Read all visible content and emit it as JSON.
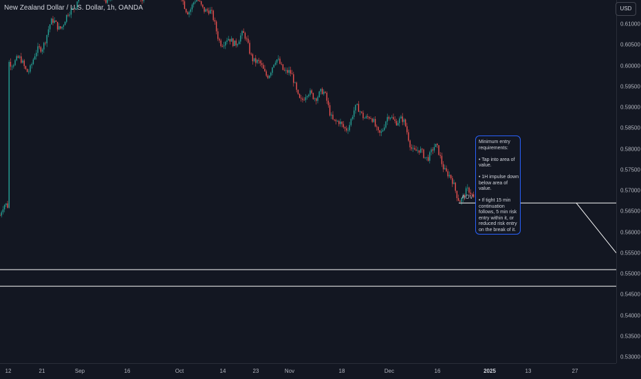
{
  "header": {
    "symbol_title": "New Zealand Dollar / U.S. Dollar, 1h, OANDA",
    "currency_button": "USD"
  },
  "annotations": {
    "zone_label": "AOV",
    "note_lines": [
      "Minimum entry requirements:",
      "• Tap into area of value.",
      "• 1H impulse down below area of value.",
      "• If tight 15 min continuation follows, 5 min risk entry within it, or reduced risk entry on the break of it."
    ]
  },
  "colors": {
    "background": "#131722",
    "up_candle": "#26a69a",
    "down_candle": "#ef5350",
    "lines": "#ffffff",
    "note_border": "#2962ff"
  },
  "chart_data": {
    "type": "candlestick",
    "title": "New Zealand Dollar / U.S. Dollar, 1h, OANDA",
    "y_axis": {
      "ticks": [
        "0.61000",
        "0.60500",
        "0.60000",
        "0.59500",
        "0.59000",
        "0.58500",
        "0.58000",
        "0.57500",
        "0.57000",
        "0.56500",
        "0.56000",
        "0.55500",
        "0.55000",
        "0.54500",
        "0.54000",
        "0.53500",
        "0.53000"
      ],
      "range": [
        0.529,
        0.616
      ]
    },
    "x_axis": {
      "ticks": [
        "12",
        "21",
        "Sep",
        "16",
        "Oct",
        "14",
        "23",
        "Nov",
        "18",
        "Dec",
        "16",
        "2025",
        "13",
        "27"
      ],
      "bold_ticks": [
        "2025"
      ]
    },
    "grid": false,
    "price_path": [
      [
        "12",
        0.599
      ],
      [
        "21",
        0.604
      ],
      [
        "Sep",
        0.618
      ],
      [
        "16",
        0.619
      ],
      [
        "Oct",
        0.618
      ],
      [
        "14",
        0.608
      ],
      [
        "23",
        0.602
      ],
      [
        "Nov",
        0.597
      ],
      [
        "18",
        0.587
      ],
      [
        "Dec",
        0.587
      ],
      [
        "16",
        0.577
      ],
      [
        "2025",
        0.5625
      ]
    ],
    "horizontal_lines": [
      0.567,
      0.551,
      0.547
    ],
    "projection": {
      "from": 0.567,
      "to": 0.555
    }
  }
}
